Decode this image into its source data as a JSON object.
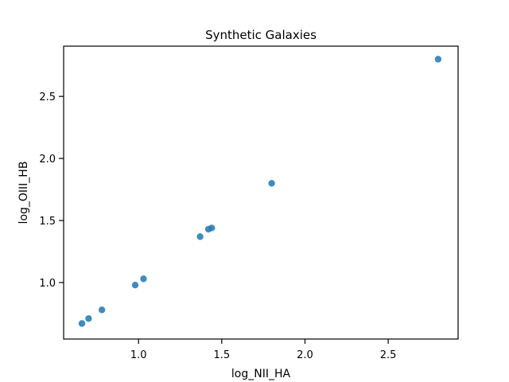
{
  "chart_data": {
    "type": "scatter",
    "title": "Synthetic Galaxies",
    "xlabel": "log_NII_HA",
    "ylabel": "log_OIII_HB",
    "xlim": [
      0.55,
      2.92
    ],
    "ylim": [
      0.545,
      2.905
    ],
    "xticks": [
      1.0,
      1.5,
      2.0,
      2.5
    ],
    "xtick_labels": [
      "1.0",
      "1.5",
      "2.0",
      "2.5"
    ],
    "yticks": [
      1.0,
      1.5,
      2.0,
      2.5
    ],
    "ytick_labels": [
      "1.0",
      "1.5",
      "2.0",
      "2.5"
    ],
    "grid": false,
    "marker_color": "#1f77b4",
    "points": [
      {
        "x": 0.66,
        "y": 0.67
      },
      {
        "x": 0.7,
        "y": 0.71
      },
      {
        "x": 0.78,
        "y": 0.78
      },
      {
        "x": 0.98,
        "y": 0.98
      },
      {
        "x": 1.03,
        "y": 1.03
      },
      {
        "x": 1.37,
        "y": 1.37
      },
      {
        "x": 1.42,
        "y": 1.43
      },
      {
        "x": 1.44,
        "y": 1.44
      },
      {
        "x": 1.8,
        "y": 1.8
      },
      {
        "x": 2.8,
        "y": 2.8
      }
    ]
  }
}
